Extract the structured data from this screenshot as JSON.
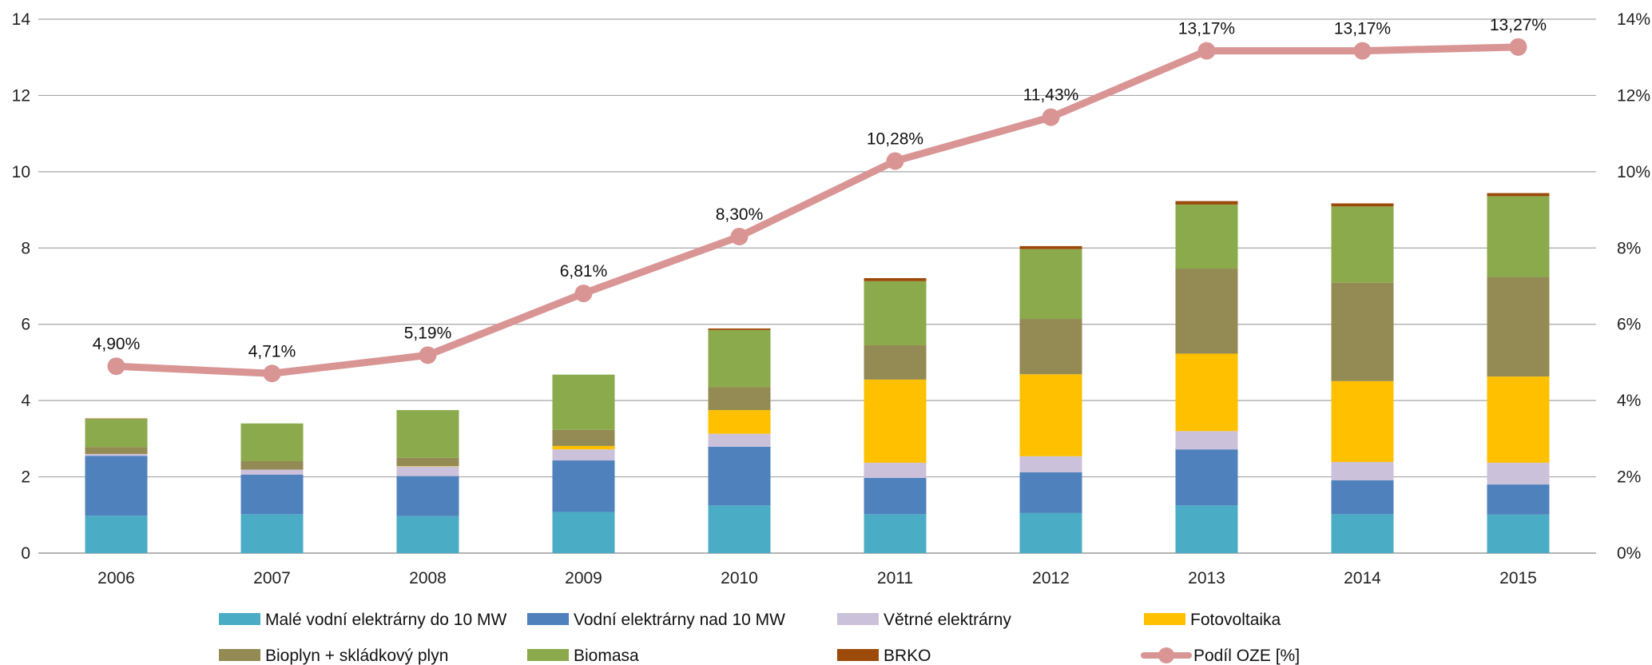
{
  "chart_data": {
    "type": "bar",
    "stacked": true,
    "categories": [
      "2006",
      "2007",
      "2008",
      "2009",
      "2010",
      "2011",
      "2012",
      "2013",
      "2014",
      "2015"
    ],
    "series": [
      {
        "name": "Malé vodní elektrárny do 10 MW",
        "color": "#4BACC6",
        "values": [
          0.98,
          1.02,
          0.97,
          1.08,
          1.25,
          1.02,
          1.05,
          1.25,
          1.02,
          1.01
        ]
      },
      {
        "name": "Vodní elektrárny nad 10 MW",
        "color": "#4F81BD",
        "values": [
          1.57,
          1.04,
          1.05,
          1.35,
          1.54,
          0.95,
          1.07,
          1.47,
          0.89,
          0.79
        ]
      },
      {
        "name": "Větrné elektrárny",
        "color": "#CCC1DA",
        "values": [
          0.05,
          0.13,
          0.25,
          0.29,
          0.34,
          0.4,
          0.42,
          0.48,
          0.48,
          0.57
        ]
      },
      {
        "name": "Fotovoltaika",
        "color": "#FFC000",
        "values": [
          0.0,
          0.0,
          0.01,
          0.09,
          0.62,
          2.18,
          2.15,
          2.03,
          2.12,
          2.26
        ]
      },
      {
        "name": "Bioplyn + skládkový plyn",
        "color": "#948A54",
        "values": [
          0.18,
          0.22,
          0.22,
          0.42,
          0.6,
          0.9,
          1.45,
          2.23,
          2.58,
          2.61
        ]
      },
      {
        "name": "Biomasa",
        "color": "#8BAA4B",
        "values": [
          0.74,
          0.99,
          1.25,
          1.45,
          1.5,
          1.68,
          1.83,
          1.68,
          2.0,
          2.12
        ]
      },
      {
        "name": "BRKO",
        "color": "#9C4A0A",
        "values": [
          0.01,
          0.0,
          0.0,
          0.0,
          0.04,
          0.08,
          0.08,
          0.09,
          0.08,
          0.08
        ]
      }
    ],
    "line_series": {
      "name": "Podíl OZE [%]",
      "color": "#D99594",
      "values": [
        4.9,
        4.71,
        5.19,
        6.81,
        8.3,
        10.28,
        11.43,
        13.17,
        13.17,
        13.27
      ],
      "labels": [
        "4,90%",
        "4,71%",
        "5,19%",
        "6,81%",
        "8,30%",
        "10,28%",
        "11,43%",
        "13,17%",
        "13,17%",
        "13,27%"
      ]
    },
    "ylim": [
      0,
      14
    ],
    "yticks": [
      "0",
      "2",
      "4",
      "6",
      "8",
      "10",
      "12",
      "14"
    ],
    "y2lim": [
      0,
      14
    ],
    "y2ticks": [
      "0%",
      "2%",
      "4%",
      "6%",
      "8%",
      "10%",
      "12%",
      "14%"
    ],
    "grid": true,
    "legend_position": "bottom"
  }
}
